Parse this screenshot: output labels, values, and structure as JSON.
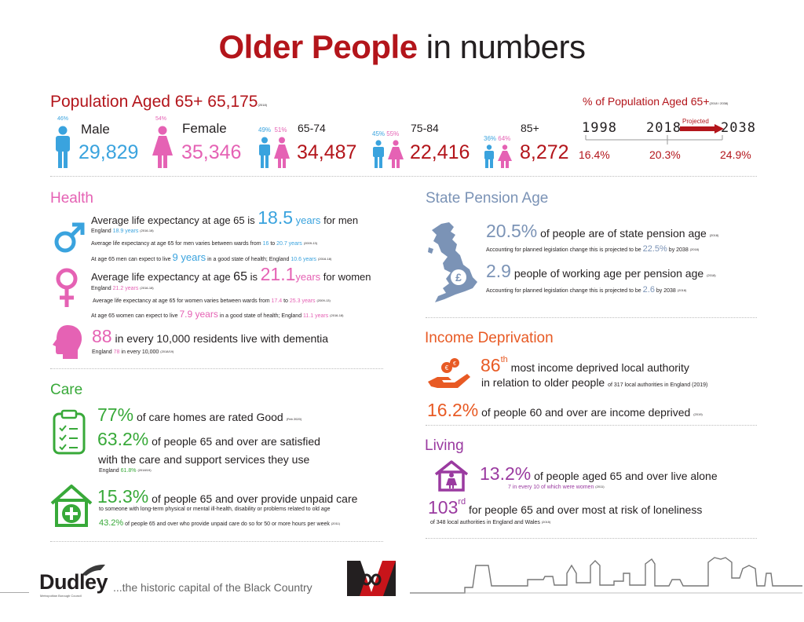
{
  "title": {
    "bold": "Older People",
    "light": "in numbers"
  },
  "population": {
    "heading": "Population Aged 65+ 65,175",
    "heading_note": "(2018)",
    "male": {
      "pct": "46%",
      "label": "Male",
      "value": "29,829"
    },
    "female": {
      "pct": "54%",
      "label": "Female",
      "value": "35,346"
    },
    "age_groups": [
      {
        "label": "65-74",
        "male_pct": "49%",
        "female_pct": "51%",
        "value": "34,487"
      },
      {
        "label": "75-84",
        "male_pct": "45%",
        "female_pct": "55%",
        "value": "22,416"
      },
      {
        "label": "85+",
        "male_pct": "36%",
        "female_pct": "64%",
        "value": "8,272"
      }
    ],
    "pct_heading": "% of Population Aged 65+",
    "pct_note": "(2018 / 2038)",
    "timeline": {
      "years": [
        "1998",
        "2018",
        "2038"
      ],
      "values": [
        "16.4%",
        "20.3%",
        "24.9%"
      ],
      "projected": "Projected"
    }
  },
  "health": {
    "heading": "Health",
    "men": {
      "l1a": "Average life expectancy at age 65 is",
      "l1b": "18.5",
      "l1c": "years",
      "l1d": "for men",
      "l2a": "England",
      "l2b": "18.9 years",
      "l2c": "(2016-18)",
      "l3a": "Average life expectancy at age 65 for men varies between wards from",
      "l3b": "16",
      "l3c": "to",
      "l3d": "20.7 years",
      "l3e": "(2009-13)",
      "l4a": "At age 65 men can expect to live",
      "l4b": "9 years",
      "l4c": "in a good state of health; England",
      "l4d": "10.6 years",
      "l4e": "(2016-18)"
    },
    "women": {
      "l1a": "Average life expectancy at age",
      "l1b": "65",
      "l1c": "is",
      "l1d": "21.1",
      "l1e": "years",
      "l1f": "for women",
      "l2a": "England",
      "l2b": "21.2 years",
      "l2c": "(2016-18)",
      "l3a": "Average life expectancy at age 65 for women varies between wards from",
      "l3b": "17.4",
      "l3c": "to",
      "l3d": "25.3 years",
      "l3e": "(2009-13)",
      "l4a": "At age 65 women can expect to live",
      "l4b": "7.9 years",
      "l4c": "in a good state of health; England",
      "l4d": "11.1 years",
      "l4e": "(2016-18)"
    },
    "dementia": {
      "value": "88",
      "text": "in every 10,000 residents live with dementia",
      "l2a": "England",
      "l2b": "78",
      "l2c": "in every 10,000",
      "l2d": "(2018/19)"
    }
  },
  "care": {
    "heading": "Care",
    "homes": {
      "value": "77%",
      "text": "of care homes are rated Good",
      "note": "(Feb 2020)"
    },
    "satisfied": {
      "value": "63.2%",
      "text1": "of people 65 and over are satisfied",
      "text2": "with the care and support services they use",
      "l3a": "England",
      "l3b": "61.8%",
      "l3c": "(2018/19)"
    },
    "unpaid": {
      "value": "15.3%",
      "text1": "of people 65 and over provide unpaid care",
      "text2": "to someone with long-term physical or mental ill-health, disability or problems related to old age",
      "value2": "43.2%",
      "text3": "of people 65 and over who provide unpaid care do so for 50 or more hours per week",
      "note": "(2011)"
    }
  },
  "pension": {
    "heading": "State Pension Age",
    "s1": {
      "value": "20.5%",
      "text": "of people are of state pension age",
      "note": "(2018)",
      "l2a": "Accounting for planned legislation change this is projected to be",
      "l2b": "22.5%",
      "l2c": "by 2038",
      "l2d": "(2018)"
    },
    "s2": {
      "value": "2.9",
      "text": "people of working age per pension age",
      "note": "(2018)",
      "l2a": "Accounting for planned legislation change this is projected to be",
      "l2b": "2.6",
      "l2c": "by 2038",
      "l2d": "(2018)"
    }
  },
  "income": {
    "heading": "Income Deprivation",
    "rank": "86",
    "rank_sup": "th",
    "text1": "most income deprived local authority",
    "text2": "in relation to older people",
    "note": "of 317 local authorities in England (2019)",
    "value": "16.2%",
    "text3": "of people 60 and over are income deprived",
    "note2": "(2019)"
  },
  "living": {
    "heading": "Living",
    "alone": {
      "value": "13.2%",
      "text": "of people aged 65 and over live alone",
      "sub": "7 in every 10 of which were women",
      "note": "(2011)"
    },
    "lonely": {
      "rank": "103",
      "sup": "rd",
      "text": "for people 65 and over most at risk of loneliness",
      "sub": "of 348 local authorities in England and Wales",
      "note": "(2015)"
    }
  },
  "footer": {
    "logo": "Dudley",
    "logo_sub": "Metropolitan Borough Council",
    "tagline": "...the historic capital of the Black Country"
  },
  "colors": {
    "red": "#b3151b",
    "blue": "#3aa3de",
    "pink": "#e562b4",
    "green": "#38a939",
    "slate": "#7b93b6",
    "orange": "#e85a24",
    "purple": "#9a3aa0"
  }
}
